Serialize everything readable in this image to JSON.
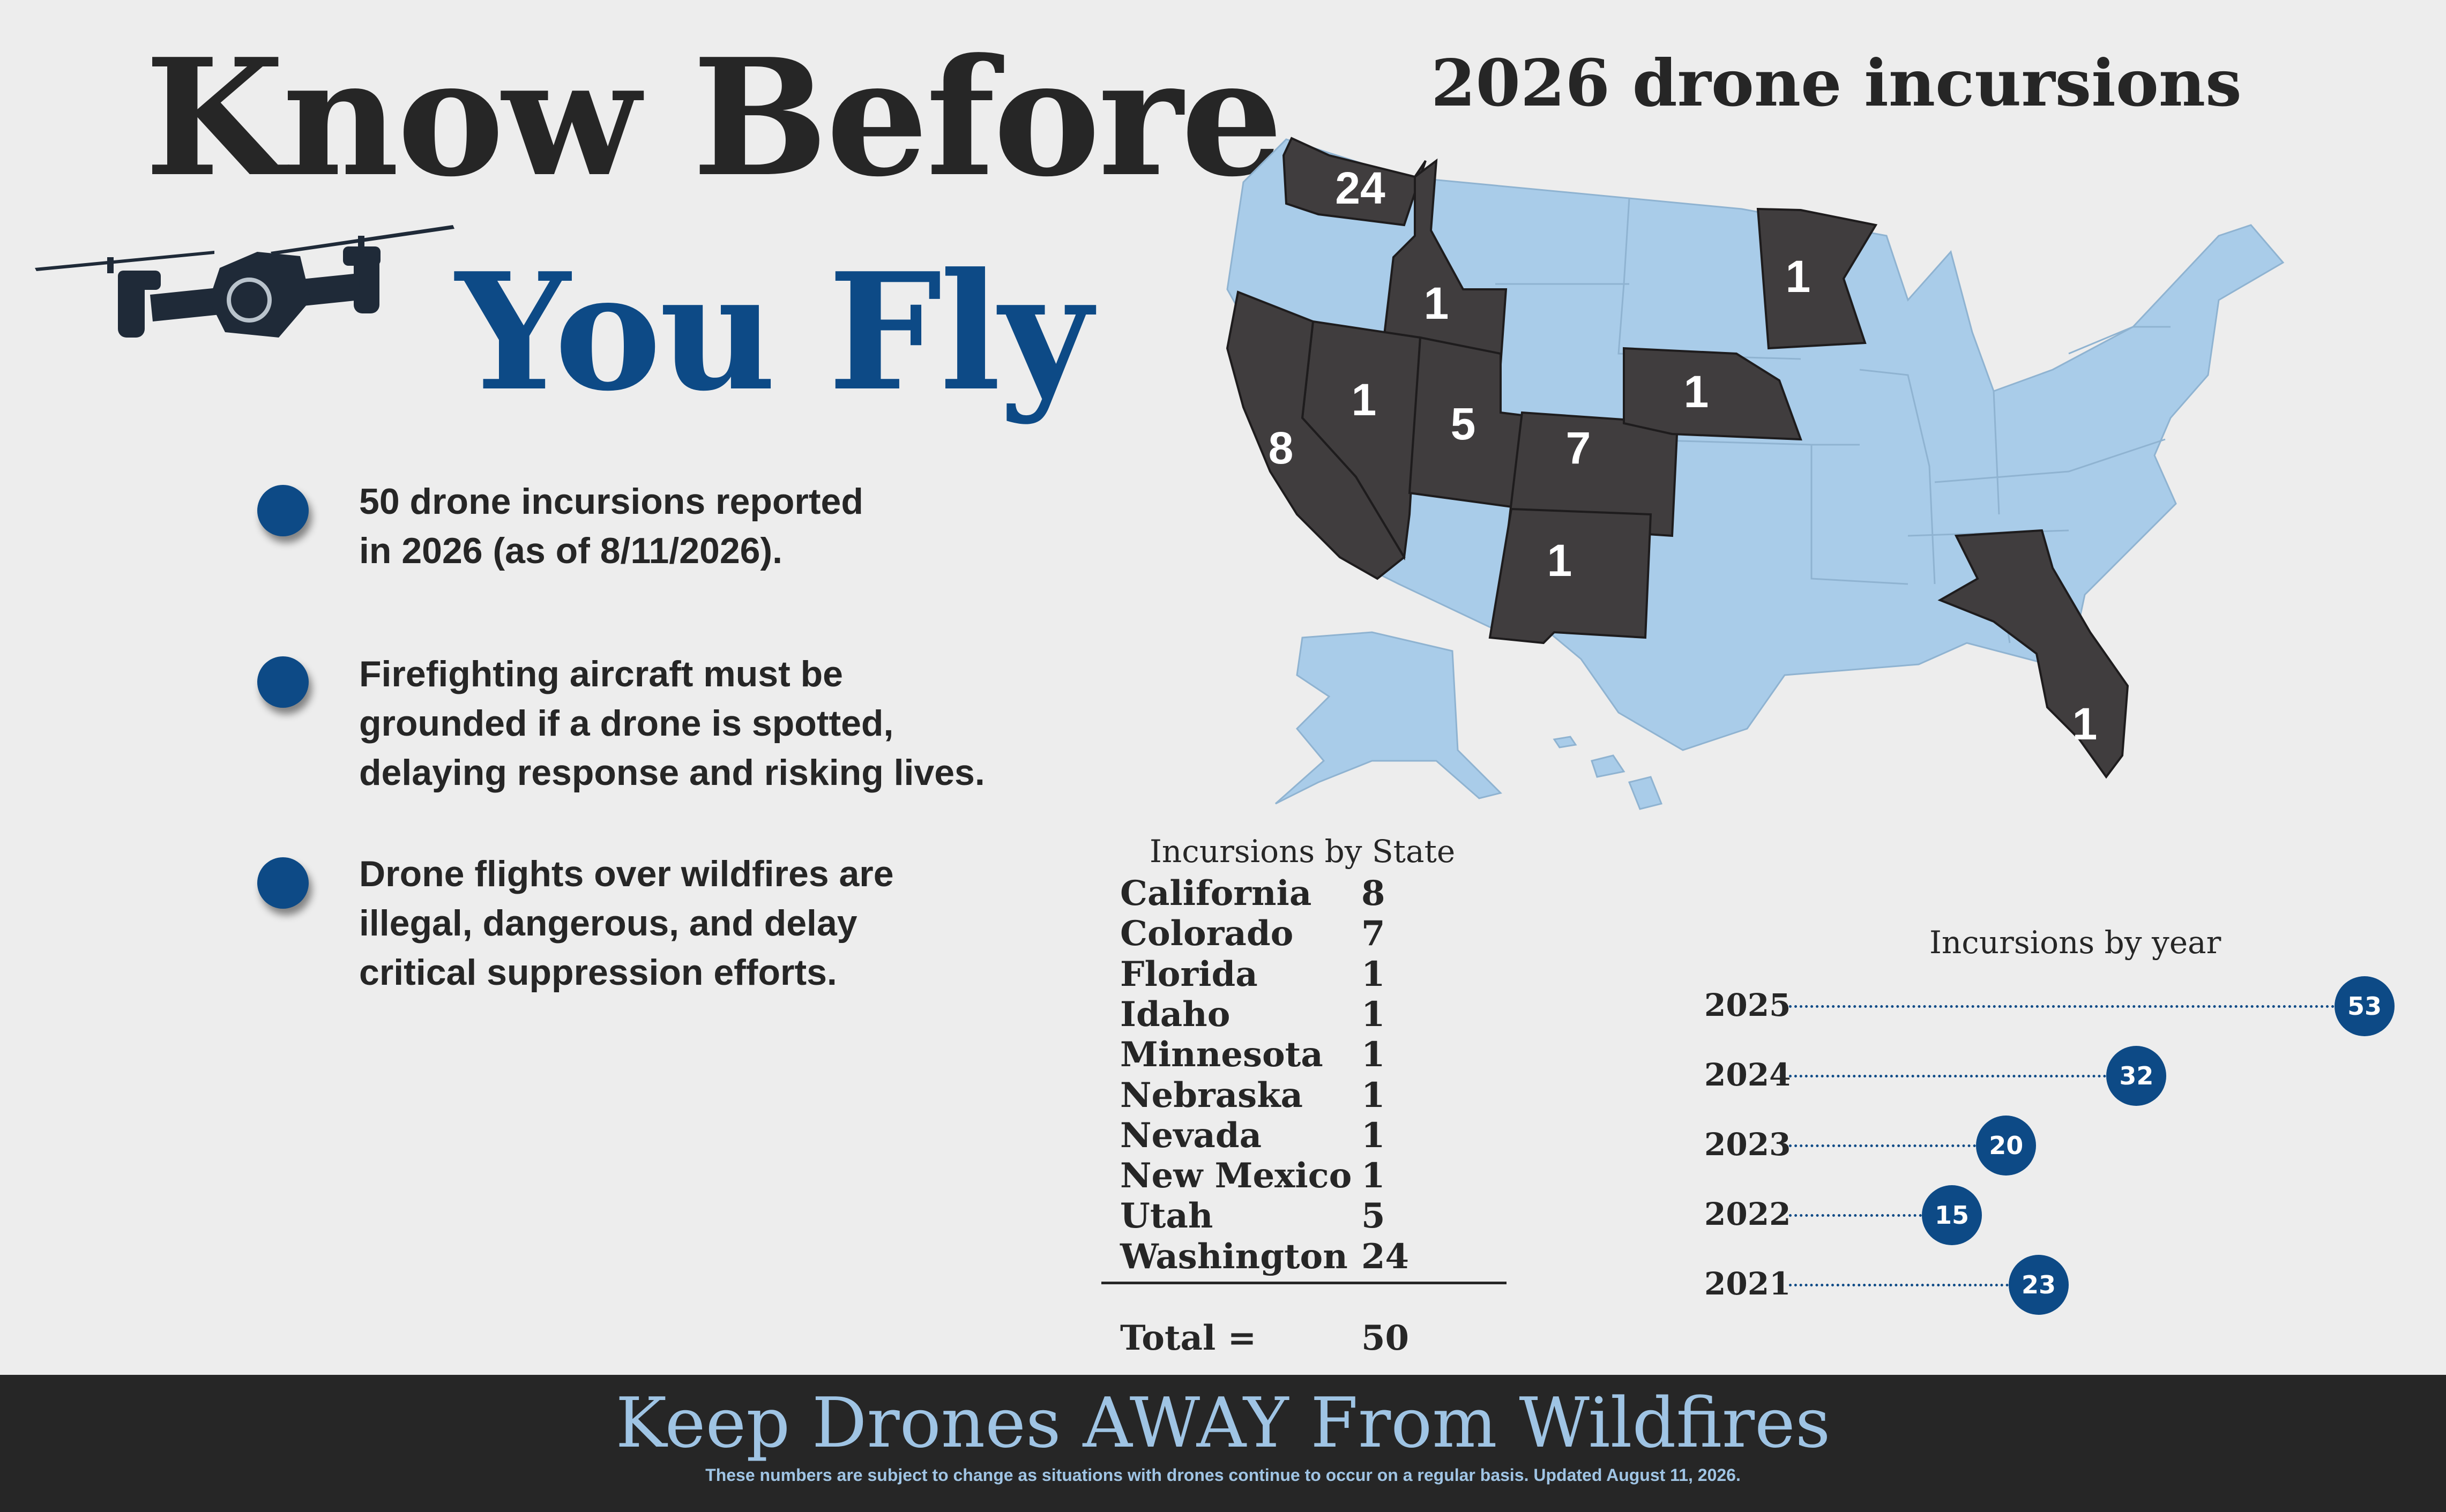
{
  "header": {
    "line1": "Know Before",
    "line2": "You Fly"
  },
  "bullets": [
    {
      "text": "50 drone incursions reported in 2026 (as of 8/11/2026)."
    },
    {
      "text": "Firefighting aircraft must be grounded if a drone is spotted, delaying response and risking lives."
    },
    {
      "text": "Drone flights over wildfires are illegal, dangerous, and delay critical suppression efforts."
    }
  ],
  "map": {
    "title": "2026 drone incursions",
    "state_labels": [
      {
        "state": "Washington",
        "value": "24"
      },
      {
        "state": "Idaho",
        "value": "1"
      },
      {
        "state": "Minnesota",
        "value": "1"
      },
      {
        "state": "Nevada",
        "value": "1"
      },
      {
        "state": "Utah",
        "value": "5"
      },
      {
        "state": "Colorado",
        "value": "7"
      },
      {
        "state": "Nebraska",
        "value": "1"
      },
      {
        "state": "California",
        "value": "8"
      },
      {
        "state": "New Mexico",
        "value": "1"
      },
      {
        "state": "Florida",
        "value": "1"
      }
    ]
  },
  "state_table": {
    "title": "Incursions by State",
    "rows": [
      {
        "state": "California",
        "count": "8"
      },
      {
        "state": "Colorado",
        "count": "7"
      },
      {
        "state": "Florida",
        "count": "1"
      },
      {
        "state": "Idaho",
        "count": "1"
      },
      {
        "state": "Minnesota",
        "count": "1"
      },
      {
        "state": "Nebraska",
        "count": "1"
      },
      {
        "state": "Nevada",
        "count": "1"
      },
      {
        "state": "New Mexico",
        "count": "1"
      },
      {
        "state": "Utah",
        "count": "5"
      },
      {
        "state": "Washington",
        "count": "24"
      }
    ],
    "total_label": "Total =",
    "total_value": "50"
  },
  "chart_data": {
    "type": "bar",
    "title": "Incursions by year",
    "categories": [
      "2025",
      "2024",
      "2023",
      "2022",
      "2021"
    ],
    "values": [
      53,
      32,
      20,
      15,
      23
    ],
    "xlim": [
      0,
      53
    ]
  },
  "footer": {
    "main": "Keep Drones AWAY From Wildfires",
    "sub": "These numbers are subject to change as situations with drones continue to occur on a regular basis. Updated August 11, 2026."
  },
  "colors": {
    "accent": "#0d4a86",
    "highlight_state": "#403d3e",
    "other_state": "#a9cce9",
    "footer_text": "#9fc4e4",
    "footer_bg": "#262626",
    "background": "#ededed"
  }
}
